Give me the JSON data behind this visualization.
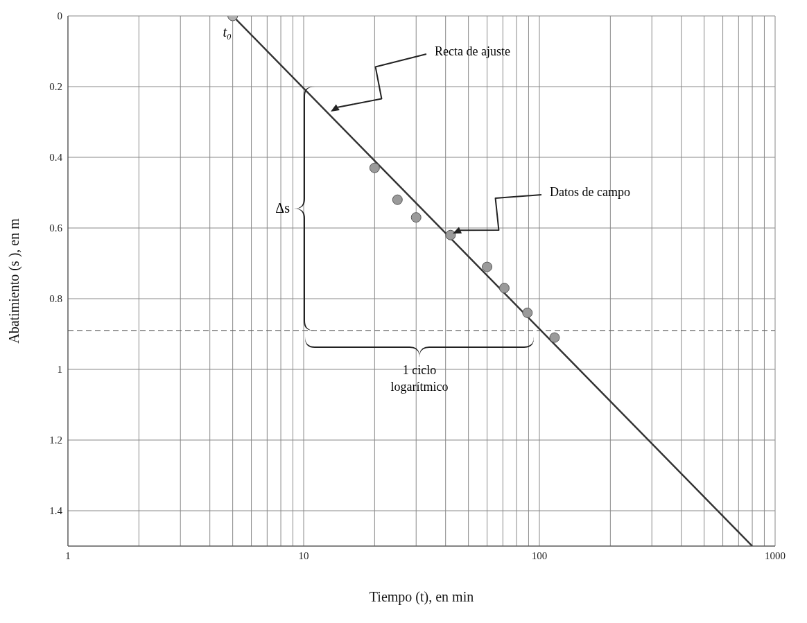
{
  "chart_data": {
    "type": "scatter",
    "xlabel": "Tiempo (t), en min",
    "ylabel": "Abatimiento (s ), en m",
    "series": [
      {
        "color": "#9a9a9a",
        "marker": "circle",
        "x": [
          20,
          25,
          30,
          42,
          60,
          71,
          89,
          116
        ],
        "values": [
          0.43,
          0.52,
          0.57,
          0.62,
          0.71,
          0.77,
          0.84,
          0.91
        ]
      },
      {
        "color": "#b0b0b0",
        "marker": "circle",
        "x": [
          5
        ],
        "values": [
          0
        ]
      },
      {
        "type": "line",
        "color": "#333333",
        "marker": "none",
        "line_style": "solid",
        "x": [
          5,
          800
        ],
        "values": [
          0,
          1.5
        ]
      }
    ],
    "log": "x",
    "xlim": [
      1,
      1000
    ],
    "xticks": [
      1,
      {
        "value": 2,
        "label": null
      },
      {
        "value": 3,
        "label": null
      },
      {
        "value": 4,
        "label": null
      },
      {
        "value": 5,
        "label": null
      },
      {
        "value": 6,
        "label": null
      },
      {
        "value": 7,
        "label": null
      },
      {
        "value": 8,
        "label": null
      },
      {
        "value": 9,
        "label": null
      },
      10,
      {
        "value": 20,
        "label": null
      },
      {
        "value": 30,
        "label": null
      },
      {
        "value": 40,
        "label": null
      },
      {
        "value": 50,
        "label": null
      },
      {
        "value": 60,
        "label": null
      },
      {
        "value": 70,
        "label": null
      },
      {
        "value": 80,
        "label": null
      },
      {
        "value": 90,
        "label": null
      },
      100,
      {
        "value": 200,
        "label": null
      },
      {
        "value": 300,
        "label": null
      },
      {
        "value": 400,
        "label": null
      },
      {
        "value": 500,
        "label": null
      },
      {
        "value": 600,
        "label": null
      },
      {
        "value": 700,
        "label": null
      },
      {
        "value": 800,
        "label": null
      },
      {
        "value": 900,
        "label": null
      },
      1000
    ],
    "ylim": [
      1.5,
      0
    ],
    "yticks": [
      0,
      0.2,
      0.4,
      0.6,
      0.8,
      1,
      1.2,
      1.4
    ],
    "grid": true,
    "legend": false,
    "ref_lines": [
      {
        "axis": "y",
        "value": 0.89,
        "line_style": "dashed",
        "color": "#666666"
      }
    ],
    "annotations": [
      {
        "text": "t₀",
        "x": 5,
        "y": 0
      },
      "Recta de ajuste",
      "Datos de campo",
      "Δs",
      "1 ciclo logarítmico"
    ]
  }
}
